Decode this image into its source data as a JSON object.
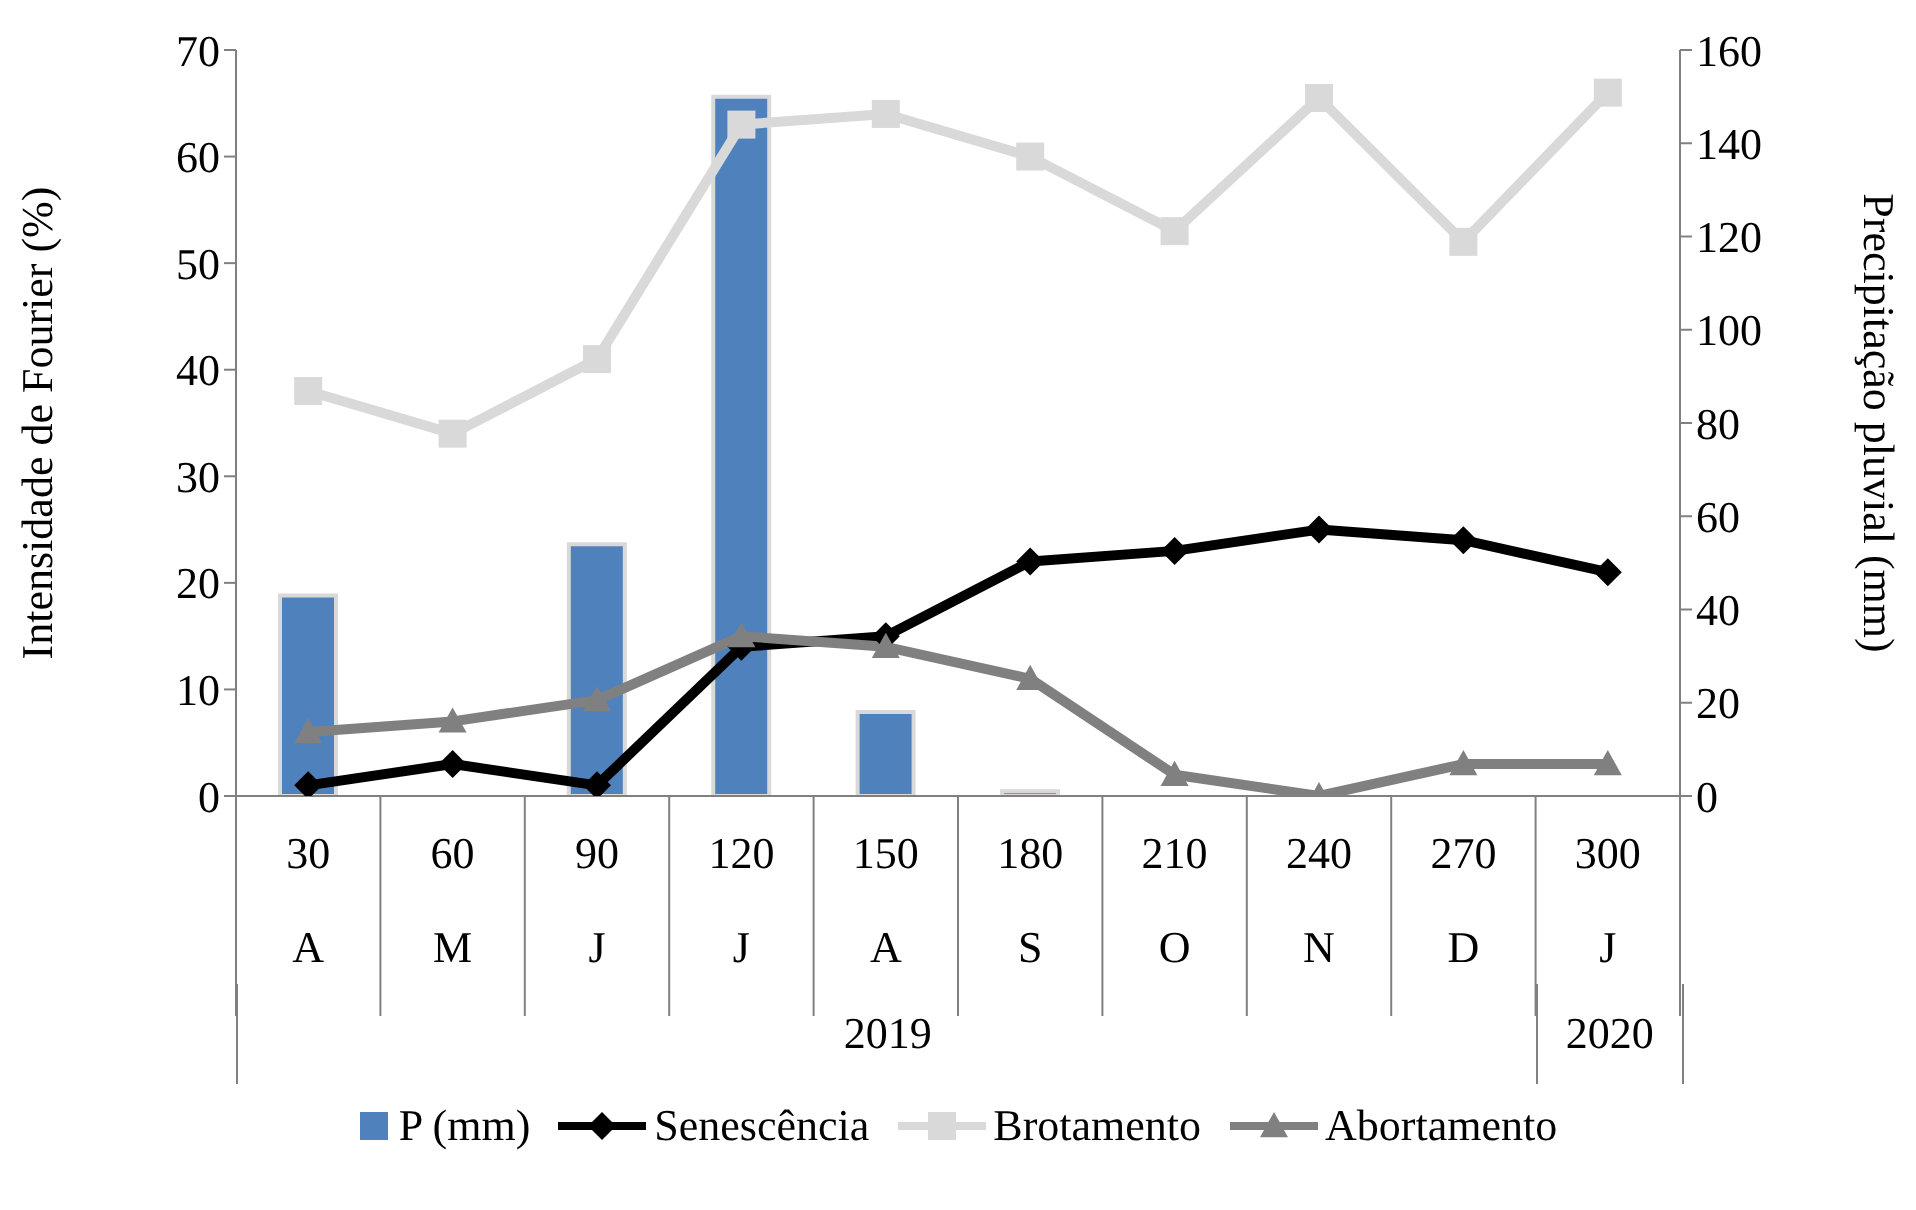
{
  "chart_data": {
    "type": "line",
    "categories": [
      "30\nA",
      "60\nM",
      "90\nJ",
      "120\nJ",
      "150\nA",
      "180\nS",
      "210\nO",
      "240\nN",
      "270\nD",
      "300\nJ"
    ],
    "ylabel": "Intensidade de Fourier (%)",
    "y2label": "Precipitação pluvial (mm)",
    "ylim": [
      0,
      70
    ],
    "yticks": [
      0,
      10,
      20,
      30,
      40,
      50,
      60,
      70
    ],
    "y2lim": [
      0,
      160
    ],
    "y2ticks": [
      0,
      20,
      40,
      60,
      80,
      100,
      120,
      140,
      160
    ],
    "series": [
      {
        "name": "P (mm)",
        "type": "bar",
        "axis": "y2",
        "color": "#4f81bd",
        "values": [
          43,
          0,
          54,
          150,
          18,
          1,
          0,
          0,
          0,
          0
        ]
      },
      {
        "name": "Senescência",
        "marker": "diamond",
        "color": "#000000",
        "values": [
          1,
          3,
          1,
          14,
          15,
          22,
          23,
          25,
          24,
          21
        ]
      },
      {
        "name": "Brotamento",
        "marker": "square",
        "color": "#d9d9d9",
        "values": [
          38,
          34,
          41,
          63,
          64,
          60,
          53,
          65.5,
          52,
          66
        ]
      },
      {
        "name": "Abortamento",
        "marker": "triangle",
        "color": "#808080",
        "values": [
          6,
          7,
          9,
          15,
          14,
          11,
          2,
          0,
          3,
          3
        ]
      }
    ],
    "annotations": [
      "2019",
      "2020"
    ],
    "legend": "bottom"
  }
}
